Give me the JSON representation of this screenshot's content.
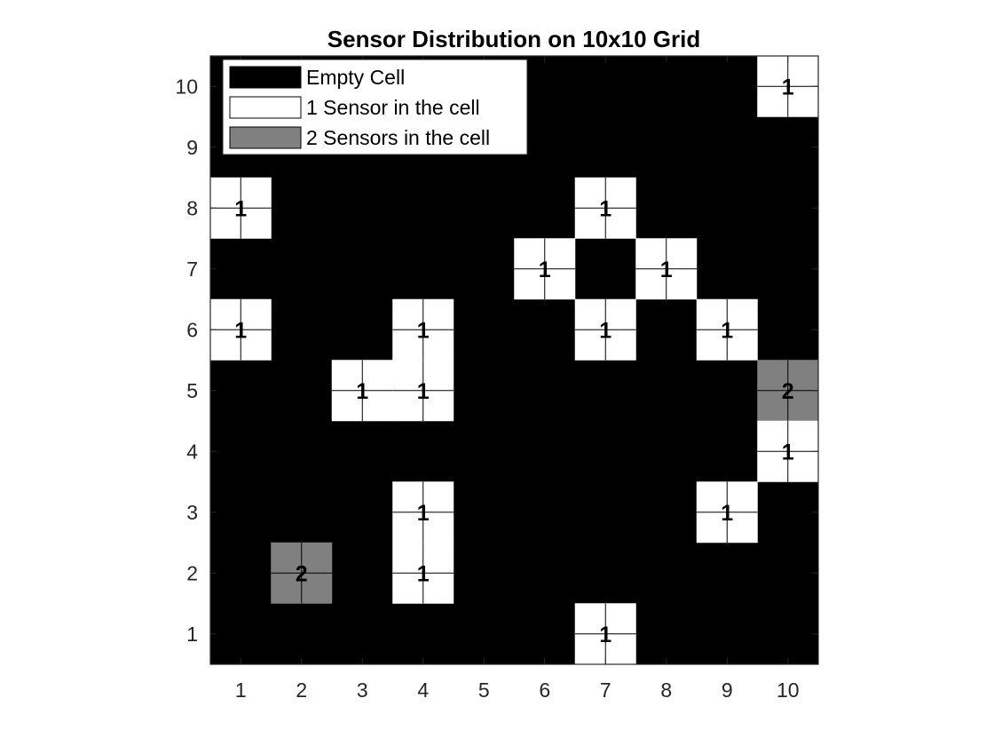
{
  "chart_data": {
    "type": "heatmap",
    "title": "Sensor Distribution on 10x10 Grid",
    "xlabel": "",
    "ylabel": "",
    "x_ticks": [
      1,
      2,
      3,
      4,
      5,
      6,
      7,
      8,
      9,
      10
    ],
    "y_ticks": [
      1,
      2,
      3,
      4,
      5,
      6,
      7,
      8,
      9,
      10
    ],
    "xlim": [
      0.5,
      10.5
    ],
    "ylim": [
      0.5,
      10.5
    ],
    "grid": false,
    "legend_position": "top-left",
    "legend": [
      {
        "label": "Empty Cell",
        "value": 0,
        "color": "#000000"
      },
      {
        "label": "1 Sensor in the cell",
        "value": 1,
        "color": "#ffffff"
      },
      {
        "label": "2 Sensors in the cell",
        "value": 2,
        "color": "#808080"
      }
    ],
    "cells": [
      {
        "x": 10,
        "y": 10,
        "value": 1
      },
      {
        "x": 1,
        "y": 8,
        "value": 1
      },
      {
        "x": 7,
        "y": 8,
        "value": 1
      },
      {
        "x": 6,
        "y": 7,
        "value": 1
      },
      {
        "x": 8,
        "y": 7,
        "value": 1
      },
      {
        "x": 1,
        "y": 6,
        "value": 1
      },
      {
        "x": 4,
        "y": 6,
        "value": 1
      },
      {
        "x": 7,
        "y": 6,
        "value": 1
      },
      {
        "x": 9,
        "y": 6,
        "value": 1
      },
      {
        "x": 3,
        "y": 5,
        "value": 1
      },
      {
        "x": 4,
        "y": 5,
        "value": 1
      },
      {
        "x": 10,
        "y": 5,
        "value": 2
      },
      {
        "x": 10,
        "y": 4,
        "value": 1
      },
      {
        "x": 4,
        "y": 3,
        "value": 1
      },
      {
        "x": 9,
        "y": 3,
        "value": 1
      },
      {
        "x": 2,
        "y": 2,
        "value": 2
      },
      {
        "x": 4,
        "y": 2,
        "value": 1
      },
      {
        "x": 7,
        "y": 1,
        "value": 1
      }
    ]
  }
}
